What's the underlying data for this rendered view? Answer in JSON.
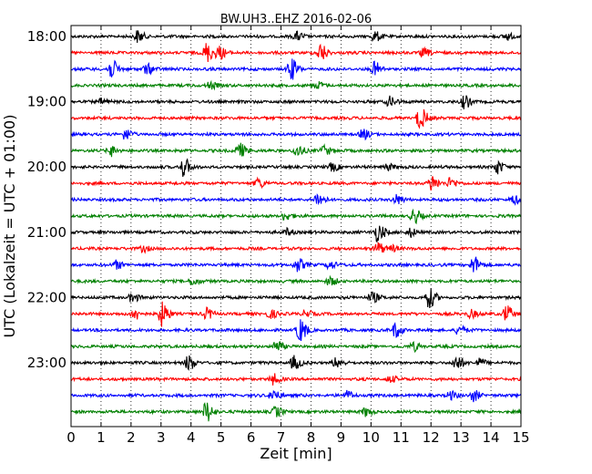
{
  "chart_data": {
    "type": "line",
    "title": "BW.UH3..EHZ 2016-02-06",
    "xlabel": "Zeit  [min]",
    "ylabel": "UTC (Lokalzeit = UTC + 01:00)",
    "xlim": [
      0,
      15
    ],
    "x_ticks": [
      0,
      1,
      2,
      3,
      4,
      5,
      6,
      7,
      8,
      9,
      10,
      11,
      12,
      13,
      14,
      15
    ],
    "x_tick_labels": [
      "0",
      "1",
      "2",
      "3",
      "4",
      "5",
      "6",
      "7",
      "8",
      "9",
      "10",
      "11",
      "12",
      "13",
      "14",
      "15"
    ],
    "grid": "vertical dotted",
    "y_tick_labels": [
      {
        "label": "18:00",
        "row": 0
      },
      {
        "label": "19:00",
        "row": 4
      },
      {
        "label": "20:00",
        "row": 8
      },
      {
        "label": "21:00",
        "row": 12
      },
      {
        "label": "22:00",
        "row": 16
      },
      {
        "label": "23:00",
        "row": 20
      }
    ],
    "line_colors": [
      "#000000",
      "#ff0000",
      "#0000ff",
      "#008000"
    ],
    "rows": [
      {
        "start": "18:00",
        "events": [
          [
            2.2,
            0.5
          ],
          [
            7.5,
            0.35
          ],
          [
            10.1,
            0.4
          ],
          [
            14.5,
            0.3
          ]
        ]
      },
      {
        "start": "18:15",
        "events": [
          [
            4.5,
            1.0
          ],
          [
            4.9,
            0.6
          ],
          [
            8.3,
            0.75
          ],
          [
            11.7,
            0.4
          ]
        ]
      },
      {
        "start": "18:30",
        "events": [
          [
            1.3,
            1.0
          ],
          [
            2.5,
            0.6
          ],
          [
            7.3,
            0.9
          ],
          [
            10.1,
            0.55
          ]
        ]
      },
      {
        "start": "18:45",
        "events": [
          [
            4.6,
            0.4
          ],
          [
            8.2,
            0.3
          ]
        ]
      },
      {
        "start": "19:00",
        "events": [
          [
            1.0,
            0.3
          ],
          [
            10.6,
            0.55
          ],
          [
            13.1,
            0.6
          ]
        ]
      },
      {
        "start": "19:15",
        "events": [
          [
            11.6,
            1.0
          ]
        ]
      },
      {
        "start": "19:30",
        "events": [
          [
            1.8,
            0.45
          ],
          [
            9.7,
            0.4
          ]
        ]
      },
      {
        "start": "19:45",
        "events": [
          [
            1.3,
            0.5
          ],
          [
            5.6,
            0.8
          ],
          [
            7.5,
            0.5
          ],
          [
            8.4,
            0.55
          ]
        ]
      },
      {
        "start": "20:00",
        "events": [
          [
            3.7,
            1.0
          ],
          [
            8.7,
            0.35
          ],
          [
            10.5,
            0.35
          ],
          [
            14.2,
            0.6
          ]
        ]
      },
      {
        "start": "20:15",
        "events": [
          [
            6.2,
            0.4
          ],
          [
            12.0,
            0.7
          ],
          [
            12.6,
            0.5
          ]
        ]
      },
      {
        "start": "20:30",
        "events": [
          [
            8.2,
            0.55
          ],
          [
            10.8,
            0.4
          ],
          [
            14.7,
            0.4
          ]
        ]
      },
      {
        "start": "20:45",
        "events": [
          [
            7.1,
            0.35
          ],
          [
            11.4,
            0.6
          ]
        ]
      },
      {
        "start": "21:00",
        "events": [
          [
            10.2,
            1.0
          ],
          [
            7.2,
            0.3
          ],
          [
            11.3,
            0.4
          ]
        ]
      },
      {
        "start": "21:15",
        "events": [
          [
            2.4,
            0.3
          ],
          [
            10.2,
            0.5
          ],
          [
            10.7,
            0.3
          ]
        ]
      },
      {
        "start": "21:30",
        "events": [
          [
            1.5,
            0.35
          ],
          [
            7.5,
            0.7
          ],
          [
            8.6,
            0.45
          ],
          [
            13.4,
            0.7
          ]
        ]
      },
      {
        "start": "21:45",
        "events": [
          [
            4.0,
            0.4
          ],
          [
            8.6,
            0.35
          ]
        ]
      },
      {
        "start": "22:00",
        "events": [
          [
            2.0,
            0.4
          ],
          [
            10.0,
            0.6
          ],
          [
            11.9,
            0.85
          ]
        ]
      },
      {
        "start": "22:15",
        "events": [
          [
            2.1,
            0.55
          ],
          [
            3.0,
            1.0
          ],
          [
            4.5,
            0.45
          ],
          [
            6.6,
            0.45
          ],
          [
            7.8,
            0.4
          ],
          [
            13.3,
            0.45
          ],
          [
            14.5,
            0.85
          ]
        ]
      },
      {
        "start": "22:30",
        "events": [
          [
            7.6,
            1.0
          ],
          [
            10.8,
            0.6
          ],
          [
            12.9,
            0.4
          ]
        ]
      },
      {
        "start": "22:45",
        "events": [
          [
            6.8,
            0.5
          ],
          [
            11.4,
            0.35
          ]
        ]
      },
      {
        "start": "23:00",
        "events": [
          [
            3.9,
            0.7
          ],
          [
            7.4,
            0.6
          ],
          [
            8.8,
            0.4
          ],
          [
            12.8,
            0.65
          ],
          [
            13.6,
            0.4
          ]
        ]
      },
      {
        "start": "23:15",
        "events": [
          [
            6.7,
            0.45
          ],
          [
            10.6,
            0.3
          ]
        ]
      },
      {
        "start": "23:30",
        "events": [
          [
            6.7,
            0.6
          ],
          [
            9.2,
            0.35
          ],
          [
            12.6,
            0.4
          ],
          [
            13.4,
            0.5
          ]
        ]
      },
      {
        "start": "23:45",
        "events": [
          [
            4.5,
            1.0
          ],
          [
            6.8,
            0.4
          ],
          [
            9.8,
            0.35
          ]
        ]
      }
    ]
  }
}
